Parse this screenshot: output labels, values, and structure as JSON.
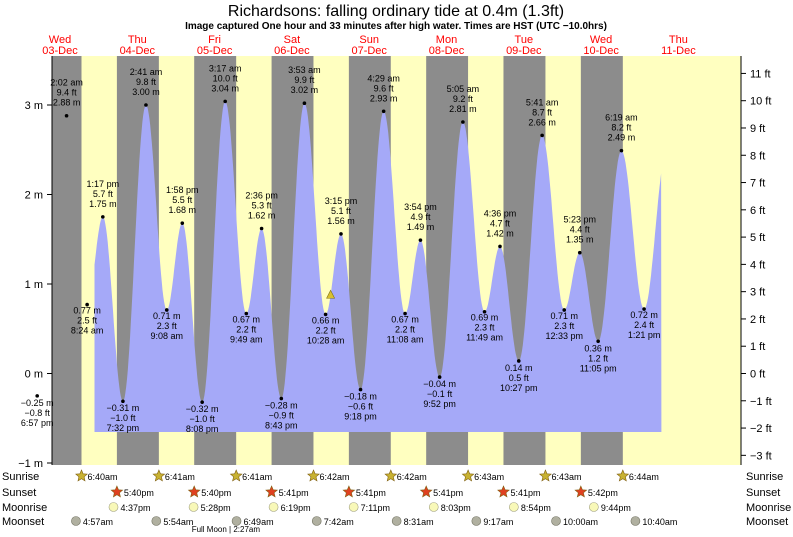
{
  "header": {
    "title": "Richardsons: falling  ordinary tide at 0.4m (1.3ft)",
    "subtitle": "Image captured One hour and 33 minutes after high water. Times are HST (UTC −10.0hrs)"
  },
  "days": [
    {
      "dow": "Wed",
      "date": "03-Dec"
    },
    {
      "dow": "Thu",
      "date": "04-Dec"
    },
    {
      "dow": "Fri",
      "date": "05-Dec"
    },
    {
      "dow": "Sat",
      "date": "06-Dec"
    },
    {
      "dow": "Sun",
      "date": "07-Dec"
    },
    {
      "dow": "Mon",
      "date": "08-Dec"
    },
    {
      "dow": "Tue",
      "date": "09-Dec"
    },
    {
      "dow": "Wed",
      "date": "10-Dec"
    },
    {
      "dow": "Thu",
      "date": "11-Dec"
    }
  ],
  "chart_data": {
    "type": "area",
    "y_left_label_unit": "m",
    "y_left_ticks": [
      "−1 m",
      "0 m",
      "1 m",
      "2 m",
      "3 m"
    ],
    "y_right_ticks": [
      "−3 ft",
      "−2 ft",
      "−1 ft",
      "0 ft",
      "1 ft",
      "2 ft",
      "3 ft",
      "4 ft",
      "5 ft",
      "6 ft",
      "7 ft",
      "8 ft",
      "9 ft",
      "10 ft",
      "11 ft"
    ],
    "ylim_m": [
      -1,
      3.5
    ],
    "current_level_m": 0.4,
    "tides": [
      {
        "t": -0.295,
        "time": "6:57 pm",
        "m": "−0.25 m",
        "ft": "−0.8 ft",
        "h": -0.25
      },
      {
        "t": 0.085,
        "time": "2:02 am",
        "m": "2.88 m",
        "ft": "9.4 ft",
        "h": 2.88
      },
      {
        "t": 0.351,
        "time": "8:24 am",
        "m": "0.77 m",
        "ft": "2.5 ft",
        "h": 0.77
      },
      {
        "t": 0.554,
        "time": "1:17 pm",
        "m": "1.75 m",
        "ft": "5.7 ft",
        "h": 1.75
      },
      {
        "t": 0.814,
        "time": "7:32 pm",
        "m": "−0.31 m",
        "ft": "−1.0 ft",
        "h": -0.31
      },
      {
        "t": 1.112,
        "time": "2:41 am",
        "m": "3.00 m",
        "ft": "9.8 ft",
        "h": 3.0
      },
      {
        "t": 1.381,
        "time": "9:08 am",
        "m": "0.71 m",
        "ft": "2.3 ft",
        "h": 0.71
      },
      {
        "t": 1.582,
        "time": "1:58 pm",
        "m": "1.68 m",
        "ft": "5.5 ft",
        "h": 1.68
      },
      {
        "t": 1.839,
        "time": "8:08 pm",
        "m": "−0.32 m",
        "ft": "−1.0 ft",
        "h": -0.32
      },
      {
        "t": 2.137,
        "time": "3:17 am",
        "m": "3.04 m",
        "ft": "10.0 ft",
        "h": 3.04
      },
      {
        "t": 2.41,
        "time": "9:49 am",
        "m": "0.67 m",
        "ft": "2.2 ft",
        "h": 0.67
      },
      {
        "t": 2.608,
        "time": "2:36 pm",
        "m": "1.62 m",
        "ft": "5.3 ft",
        "h": 1.62
      },
      {
        "t": 2.863,
        "time": "8:43 pm",
        "m": "−0.28 m",
        "ft": "−0.9 ft",
        "h": -0.28
      },
      {
        "t": 3.162,
        "time": "3:53 am",
        "m": "3.02 m",
        "ft": "9.9 ft",
        "h": 3.02
      },
      {
        "t": 3.436,
        "time": "10:28 am",
        "m": "0.66 m",
        "ft": "2.2 ft",
        "h": 0.66
      },
      {
        "t": 3.635,
        "time": "3:15 pm",
        "m": "1.56 m",
        "ft": "5.1 ft",
        "h": 1.56
      },
      {
        "t": 3.888,
        "time": "9:18 pm",
        "m": "−0.18 m",
        "ft": "−0.6 ft",
        "h": -0.18
      },
      {
        "t": 4.187,
        "time": "4:29 am",
        "m": "2.93 m",
        "ft": "9.6 ft",
        "h": 2.93
      },
      {
        "t": 4.464,
        "time": "11:08 am",
        "m": "0.67 m",
        "ft": "2.2 ft",
        "h": 0.67
      },
      {
        "t": 4.663,
        "time": "3:54 pm",
        "m": "1.49 m",
        "ft": "4.9 ft",
        "h": 1.49
      },
      {
        "t": 4.911,
        "time": "9:52 pm",
        "m": "−0.04 m",
        "ft": "−0.1 ft",
        "h": -0.04
      },
      {
        "t": 5.212,
        "time": "5:05 am",
        "m": "2.81 m",
        "ft": "9.2 ft",
        "h": 2.81
      },
      {
        "t": 5.492,
        "time": "11:49 am",
        "m": "0.69 m",
        "ft": "2.3 ft",
        "h": 0.69
      },
      {
        "t": 5.692,
        "time": "4:36 pm",
        "m": "1.42 m",
        "ft": "4.7 ft",
        "h": 1.42
      },
      {
        "t": 5.935,
        "time": "10:27 pm",
        "m": "0.14 m",
        "ft": "0.5 ft",
        "h": 0.14
      },
      {
        "t": 6.237,
        "time": "5:41 am",
        "m": "2.66 m",
        "ft": "8.7 ft",
        "h": 2.66
      },
      {
        "t": 6.523,
        "time": "12:33 pm",
        "m": "0.71 m",
        "ft": "2.3 ft",
        "h": 0.71
      },
      {
        "t": 6.724,
        "time": "5:23 pm",
        "m": "1.35 m",
        "ft": "4.4 ft",
        "h": 1.35
      },
      {
        "t": 6.962,
        "time": "11:05 pm",
        "m": "0.36 m",
        "ft": "1.2 ft",
        "h": 0.36
      },
      {
        "t": 7.263,
        "time": "6:19 am",
        "m": "2.49 m",
        "ft": "8.2 ft",
        "h": 2.49
      },
      {
        "t": 7.556,
        "time": "1:21 pm",
        "m": "0.72 m",
        "ft": "2.4 ft",
        "h": 0.72
      }
    ]
  },
  "sun_moon": {
    "row_labels": [
      "Sunrise",
      "Sunset",
      "Moonrise",
      "Moonset"
    ],
    "sunrise": [
      {
        "t": 0.278,
        "text": "6:40am"
      },
      {
        "t": 1.279,
        "text": "6:41am"
      },
      {
        "t": 2.279,
        "text": "6:41am"
      },
      {
        "t": 3.279,
        "text": "6:42am"
      },
      {
        "t": 4.279,
        "text": "6:42am"
      },
      {
        "t": 5.279,
        "text": "6:43am"
      },
      {
        "t": 6.28,
        "text": "6:43am"
      },
      {
        "t": 7.281,
        "text": "6:44am"
      }
    ],
    "sunset": [
      {
        "t": 0.736,
        "text": "5:40pm"
      },
      {
        "t": 1.736,
        "text": "5:40pm"
      },
      {
        "t": 2.737,
        "text": "5:41pm"
      },
      {
        "t": 3.737,
        "text": "5:41pm"
      },
      {
        "t": 4.737,
        "text": "5:41pm"
      },
      {
        "t": 5.737,
        "text": "5:41pm"
      },
      {
        "t": 6.738,
        "text": "5:42pm"
      }
    ],
    "moonrise": [
      {
        "t": 0.692,
        "text": "4:37pm"
      },
      {
        "t": 1.728,
        "text": "5:28pm"
      },
      {
        "t": 2.763,
        "text": "6:19pm"
      },
      {
        "t": 3.799,
        "text": "7:11pm"
      },
      {
        "t": 4.835,
        "text": "8:03pm"
      },
      {
        "t": 5.871,
        "text": "8:54pm"
      },
      {
        "t": 6.906,
        "text": "9:44pm"
      }
    ],
    "moonset": [
      {
        "t": 0.206,
        "text": "4:57am"
      },
      {
        "t": 1.246,
        "text": "5:54am"
      },
      {
        "t": 2.284,
        "text": "6:49am"
      },
      {
        "t": 3.321,
        "text": "7:42am"
      },
      {
        "t": 4.355,
        "text": "8:31am"
      },
      {
        "t": 5.386,
        "text": "9:17am"
      },
      {
        "t": 6.417,
        "text": "10:00am"
      },
      {
        "t": 7.444,
        "text": "10:40am"
      }
    ],
    "full_moon": {
      "t": 2.094,
      "text": "Full Moon | 2:27am"
    }
  },
  "colors": {
    "night": "#8c8c8c",
    "day": "#ffffc0",
    "water": "#a5a9f8",
    "day_label": "#ff0000",
    "sun_star": "#c8b232",
    "sunset_star": "#e04020",
    "moon_fill": "#f8f8b8",
    "moon_set": "#b0b0a0"
  }
}
